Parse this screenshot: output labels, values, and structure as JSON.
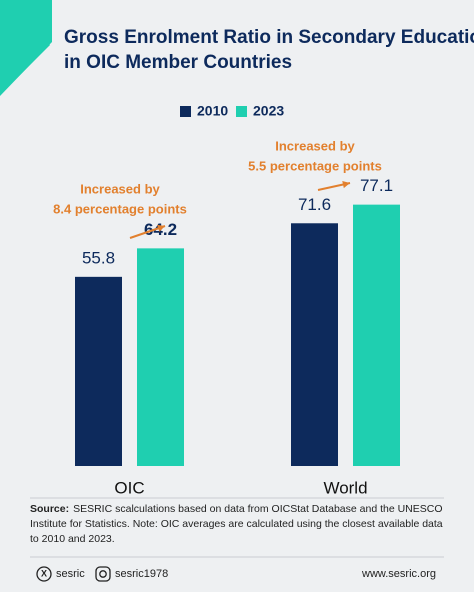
{
  "chart_data": {
    "type": "bar",
    "title": "Gross Enrolment Ratio in Secondary Education in OIC Member Countries",
    "categories": [
      "OIC",
      "World"
    ],
    "series": [
      {
        "name": "2010",
        "color": "#0d2a5c",
        "values": [
          55.8,
          71.6
        ]
      },
      {
        "name": "2023",
        "color": "#1fcfb0",
        "values": [
          64.2,
          77.1
        ]
      }
    ],
    "annotations": [
      {
        "lines": [
          "Increased by",
          "8.4 percentage points"
        ],
        "color": "#e2802e"
      },
      {
        "lines": [
          "Increased by",
          "5.5 percentage points"
        ],
        "color": "#e2802e"
      }
    ]
  },
  "source": {
    "label": "Source:",
    "text": "SESRIC scalculations based on data from OICStat Database and the UNESCO Institute for Statistics. Note: OIC averages are calculated using the closest available data to 2010 and 2023."
  },
  "footer": {
    "x_handle": "sesric",
    "instagram_handle": "sesric1978",
    "website": "www.sesric.org"
  }
}
